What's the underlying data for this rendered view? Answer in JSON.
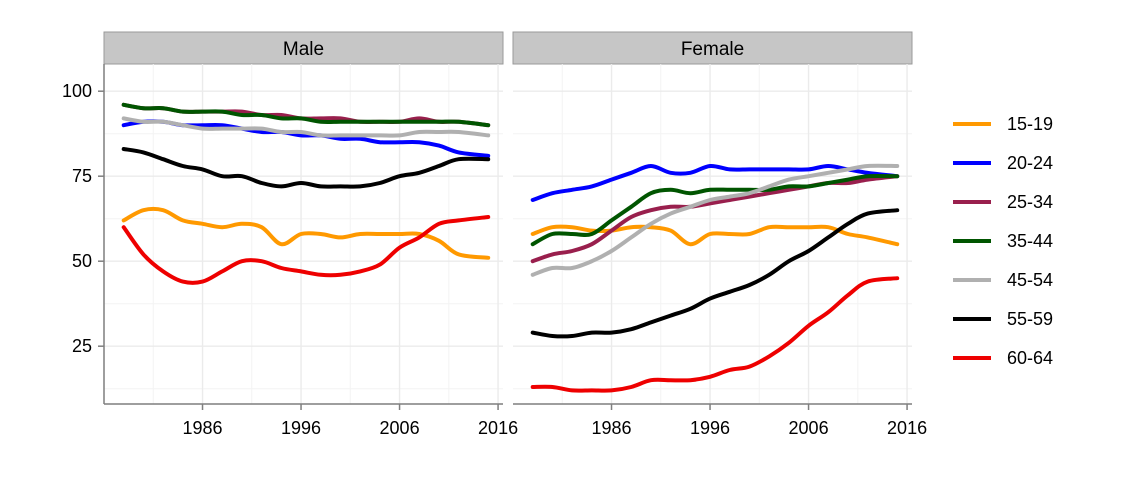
{
  "chart_data": {
    "type": "line",
    "panels": [
      "Male",
      "Female"
    ],
    "x_ticks": [
      1986,
      1996,
      2006,
      2016
    ],
    "y_ticks": [
      25,
      50,
      75,
      100
    ],
    "xlim": [
      1976,
      2016.5
    ],
    "ylim": [
      8,
      108
    ],
    "grid": true,
    "legend_position": "right",
    "series": [
      {
        "name": "15-19",
        "color": "#FF9900",
        "x": [
          1978,
          1980,
          1982,
          1984,
          1986,
          1988,
          1990,
          1992,
          1994,
          1996,
          1998,
          2000,
          2002,
          2004,
          2006,
          2008,
          2010,
          2012,
          2015
        ],
        "male": [
          62,
          65,
          65,
          62,
          61,
          60,
          61,
          60,
          55,
          58,
          58,
          57,
          58,
          58,
          58,
          58,
          56,
          52,
          51
        ],
        "female": [
          58,
          60,
          60,
          59,
          59,
          60,
          60,
          59,
          55,
          58,
          58,
          58,
          60,
          60,
          60,
          60,
          58,
          57,
          55
        ]
      },
      {
        "name": "20-24",
        "color": "#0000FF",
        "x": [
          1978,
          1980,
          1982,
          1984,
          1986,
          1988,
          1990,
          1992,
          1994,
          1996,
          1998,
          2000,
          2002,
          2004,
          2006,
          2008,
          2010,
          2012,
          2015
        ],
        "male": [
          90,
          91,
          91,
          90,
          90,
          90,
          89,
          88,
          88,
          87,
          87,
          86,
          86,
          85,
          85,
          85,
          84,
          82,
          81
        ],
        "female": [
          68,
          70,
          71,
          72,
          74,
          76,
          78,
          76,
          76,
          78,
          77,
          77,
          77,
          77,
          77,
          78,
          77,
          76,
          75
        ]
      },
      {
        "name": "25-34",
        "color": "#991F4D",
        "x": [
          1978,
          1980,
          1982,
          1984,
          1986,
          1988,
          1990,
          1992,
          1994,
          1996,
          1998,
          2000,
          2002,
          2004,
          2006,
          2008,
          2010,
          2012,
          2015
        ],
        "male": [
          96,
          95,
          95,
          94,
          94,
          94,
          94,
          93,
          93,
          92,
          92,
          92,
          91,
          91,
          91,
          92,
          91,
          91,
          90
        ],
        "female": [
          50,
          52,
          53,
          55,
          59,
          63,
          65,
          66,
          66,
          67,
          68,
          69,
          70,
          71,
          72,
          73,
          73,
          74,
          75
        ]
      },
      {
        "name": "35-44",
        "color": "#005500",
        "x": [
          1978,
          1980,
          1982,
          1984,
          1986,
          1988,
          1990,
          1992,
          1994,
          1996,
          1998,
          2000,
          2002,
          2004,
          2006,
          2008,
          2010,
          2012,
          2015
        ],
        "male": [
          96,
          95,
          95,
          94,
          94,
          94,
          93,
          93,
          92,
          92,
          91,
          91,
          91,
          91,
          91,
          91,
          91,
          91,
          90
        ],
        "female": [
          55,
          58,
          58,
          58,
          62,
          66,
          70,
          71,
          70,
          71,
          71,
          71,
          71,
          72,
          72,
          73,
          74,
          75,
          75
        ]
      },
      {
        "name": "45-54",
        "color": "#B0B0B0",
        "x": [
          1978,
          1980,
          1982,
          1984,
          1986,
          1988,
          1990,
          1992,
          1994,
          1996,
          1998,
          2000,
          2002,
          2004,
          2006,
          2008,
          2010,
          2012,
          2015
        ],
        "male": [
          92,
          91,
          91,
          90,
          89,
          89,
          89,
          89,
          88,
          88,
          87,
          87,
          87,
          87,
          87,
          88,
          88,
          88,
          87
        ],
        "female": [
          46,
          48,
          48,
          50,
          53,
          57,
          61,
          64,
          66,
          68,
          69,
          70,
          72,
          74,
          75,
          76,
          77,
          78,
          78
        ]
      },
      {
        "name": "55-59",
        "color": "#000000",
        "x": [
          1978,
          1980,
          1982,
          1984,
          1986,
          1988,
          1990,
          1992,
          1994,
          1996,
          1998,
          2000,
          2002,
          2004,
          2006,
          2008,
          2010,
          2012,
          2015
        ],
        "male": [
          83,
          82,
          80,
          78,
          77,
          75,
          75,
          73,
          72,
          73,
          72,
          72,
          72,
          73,
          75,
          76,
          78,
          80,
          80
        ],
        "female": [
          29,
          28,
          28,
          29,
          29,
          30,
          32,
          34,
          36,
          39,
          41,
          43,
          46,
          50,
          53,
          57,
          61,
          64,
          65
        ]
      },
      {
        "name": "60-64",
        "color": "#EE0000",
        "x": [
          1978,
          1980,
          1982,
          1984,
          1986,
          1988,
          1990,
          1992,
          1994,
          1996,
          1998,
          2000,
          2002,
          2004,
          2006,
          2008,
          2010,
          2012,
          2015
        ],
        "male": [
          60,
          52,
          47,
          44,
          44,
          47,
          50,
          50,
          48,
          47,
          46,
          46,
          47,
          49,
          54,
          57,
          61,
          62,
          63
        ],
        "female": [
          13,
          13,
          12,
          12,
          12,
          13,
          15,
          15,
          15,
          16,
          18,
          19,
          22,
          26,
          31,
          35,
          40,
          44,
          45
        ]
      }
    ]
  }
}
